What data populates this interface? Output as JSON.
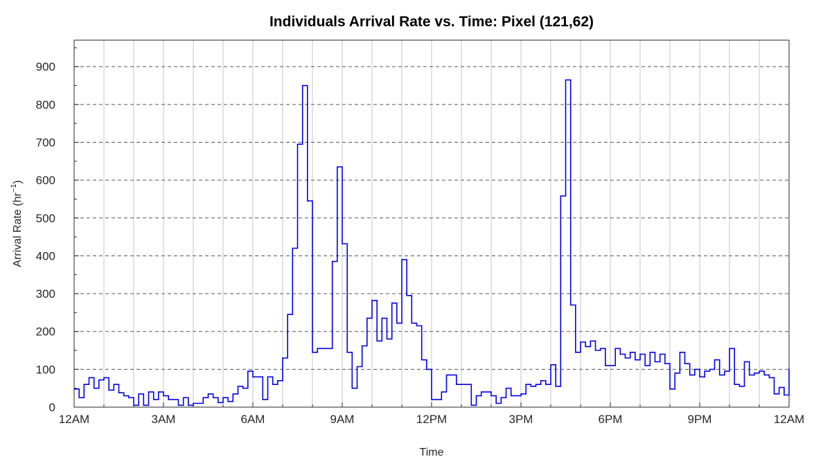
{
  "chart_data": {
    "type": "line",
    "style": "step",
    "title": "Individuals Arrival Rate vs. Time: Pixel (121,62)",
    "xlabel": "Time",
    "ylabel": "Arrival Rate (hr",
    "ylabel_superscript": "−1",
    "ylabel_close": ")",
    "xlim": [
      0,
      24
    ],
    "ylim": [
      0,
      970
    ],
    "x_ticks": [
      0,
      3,
      6,
      9,
      12,
      15,
      18,
      21,
      24
    ],
    "x_tick_labels": [
      "12AM",
      "3AM",
      "6AM",
      "9AM",
      "12PM",
      "3PM",
      "6PM",
      "9PM",
      "12AM"
    ],
    "y_ticks": [
      0,
      100,
      200,
      300,
      400,
      500,
      600,
      700,
      800,
      900
    ],
    "y_tick_labels": [
      "0",
      "100",
      "200",
      "300",
      "400",
      "500",
      "600",
      "700",
      "800",
      "900"
    ],
    "grid": {
      "x": "solid",
      "y": "dashed"
    },
    "line_color": "#0000e6",
    "bin_hours": 0.16667,
    "series": [
      {
        "values": [
          48,
          25,
          60,
          78,
          50,
          72,
          78,
          45,
          60,
          38,
          30,
          25,
          5,
          35,
          5,
          40,
          20,
          40,
          30,
          20,
          20,
          5,
          25,
          5,
          10,
          10,
          25,
          35,
          25,
          12,
          25,
          15,
          35,
          55,
          50,
          95,
          80,
          80,
          20,
          80,
          60,
          70,
          130,
          245,
          420,
          695,
          850,
          545,
          145,
          155,
          155,
          155,
          385,
          635,
          432,
          145,
          50,
          107,
          162,
          235,
          282,
          175,
          235,
          180,
          275,
          222,
          390,
          295,
          222,
          215,
          125,
          100,
          20,
          20,
          40,
          85,
          85,
          60,
          60,
          60,
          5,
          30,
          40,
          40,
          30,
          10,
          25,
          50,
          30,
          30,
          35,
          60,
          55,
          60,
          70,
          60,
          112,
          55,
          558,
          865,
          270,
          145,
          172,
          160,
          175,
          150,
          155,
          110,
          110,
          155,
          140,
          130,
          145,
          125,
          140,
          110,
          145,
          120,
          140,
          115,
          48,
          90,
          145,
          115,
          85,
          100,
          80,
          95,
          100,
          125,
          85,
          95,
          155,
          60,
          55,
          120,
          85,
          90,
          95,
          85,
          78,
          35,
          52,
          32,
          48,
          102,
          60
        ]
      }
    ]
  }
}
